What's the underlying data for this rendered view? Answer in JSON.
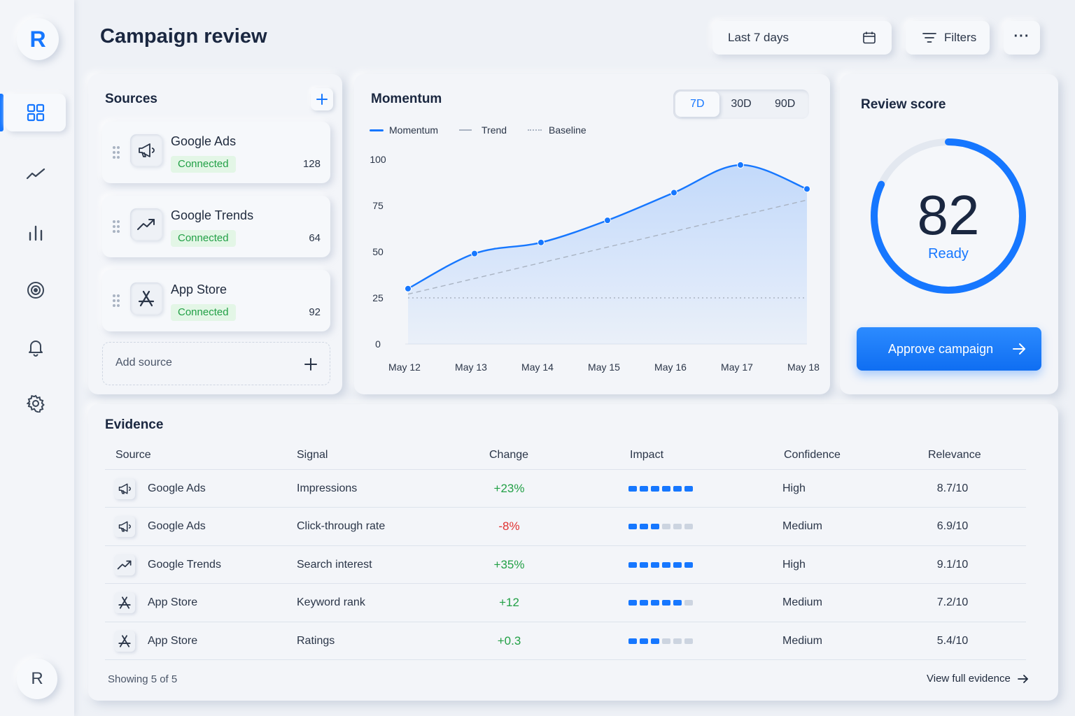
{
  "app": {
    "logo_letter": "R",
    "avatar_letter": "R",
    "title": "Campaign review"
  },
  "sidebar": {
    "items": [
      {
        "name": "dashboard",
        "icon": "grid-icon"
      },
      {
        "name": "trends",
        "icon": "trend-line-icon"
      },
      {
        "name": "analytics",
        "icon": "bar-chart-icon"
      },
      {
        "name": "targets",
        "icon": "target-icon"
      },
      {
        "name": "notifications",
        "icon": "bell-icon"
      },
      {
        "name": "settings",
        "icon": "gear-icon"
      }
    ],
    "active": "dashboard"
  },
  "header": {
    "date_range": "Last 7 days",
    "filters_label": "Filters",
    "more_label": "···"
  },
  "sources": {
    "title": "Sources",
    "items": [
      {
        "name": "Google Ads",
        "status": "Connected",
        "count": "128",
        "icon": "megaphone-icon"
      },
      {
        "name": "Google Trends",
        "status": "Connected",
        "count": "64",
        "icon": "trending-up-icon"
      },
      {
        "name": "App Store",
        "status": "Connected",
        "count": "92",
        "icon": "app-store-icon"
      }
    ],
    "add_label": "Add source"
  },
  "momentum": {
    "title": "Momentum",
    "tabs": [
      "7D",
      "30D",
      "90D"
    ],
    "active_tab": "7D",
    "legend": [
      "Momentum",
      "Trend",
      "Baseline"
    ]
  },
  "chart_data": {
    "type": "area",
    "title": "Momentum",
    "categories": [
      "May 12",
      "May 13",
      "May 14",
      "May 15",
      "May 16",
      "May 17",
      "May 18"
    ],
    "series": [
      {
        "name": "Momentum",
        "style": "solid-area",
        "values": [
          30,
          49,
          55,
          67,
          82,
          97,
          84
        ]
      },
      {
        "name": "Trend",
        "style": "dashed",
        "values": [
          27,
          35.5,
          44,
          52.5,
          61,
          69.5,
          78
        ]
      },
      {
        "name": "Baseline",
        "style": "dotted",
        "values": [
          25,
          25,
          25,
          25,
          25,
          25,
          25
        ]
      }
    ],
    "yticks": [
      0,
      25,
      50,
      75,
      100
    ],
    "ylim": [
      0,
      100
    ],
    "xlabel": "",
    "ylabel": "",
    "grid": false,
    "legend_position": "top-left",
    "colors": {
      "momentum": "#1677ff",
      "trend": "#a9b3c2",
      "baseline": "#a9b3c2"
    }
  },
  "review": {
    "title": "Review score",
    "score": "82",
    "score_value": 82,
    "status": "Ready",
    "approve_label": "Approve campaign"
  },
  "evidence": {
    "title": "Evidence",
    "columns": [
      "Source",
      "Signal",
      "Change",
      "Impact",
      "Confidence",
      "Relevance"
    ],
    "rows": [
      {
        "source": "Google Ads",
        "icon": "megaphone-icon",
        "signal": "Impressions",
        "change": "+23%",
        "trend": "up",
        "impact": 6,
        "confidence": "High",
        "relevance": "8.7/10"
      },
      {
        "source": "Google Ads",
        "icon": "megaphone-icon",
        "signal": "Click-through rate",
        "change": "-8%",
        "trend": "down",
        "impact": 3,
        "confidence": "Medium",
        "relevance": "6.9/10"
      },
      {
        "source": "Google Trends",
        "icon": "trending-up-icon",
        "signal": "Search interest",
        "change": "+35%",
        "trend": "up",
        "impact": 6,
        "confidence": "High",
        "relevance": "9.1/10"
      },
      {
        "source": "App Store",
        "icon": "app-store-icon",
        "signal": "Keyword rank",
        "change": "+12",
        "trend": "up",
        "impact": 5,
        "confidence": "Medium",
        "relevance": "7.2/10"
      },
      {
        "source": "App Store",
        "icon": "app-store-icon",
        "signal": "Ratings",
        "change": "+0.3",
        "trend": "up",
        "impact": 3,
        "confidence": "Medium",
        "relevance": "5.4/10"
      }
    ],
    "impact_max": 6,
    "footer_text": "Showing 5 of 5",
    "view_all_label": "View full evidence"
  },
  "colors": {
    "accent": "#1677ff",
    "positive": "#22a046",
    "negative": "#e03131",
    "background": "#eef1f6"
  }
}
